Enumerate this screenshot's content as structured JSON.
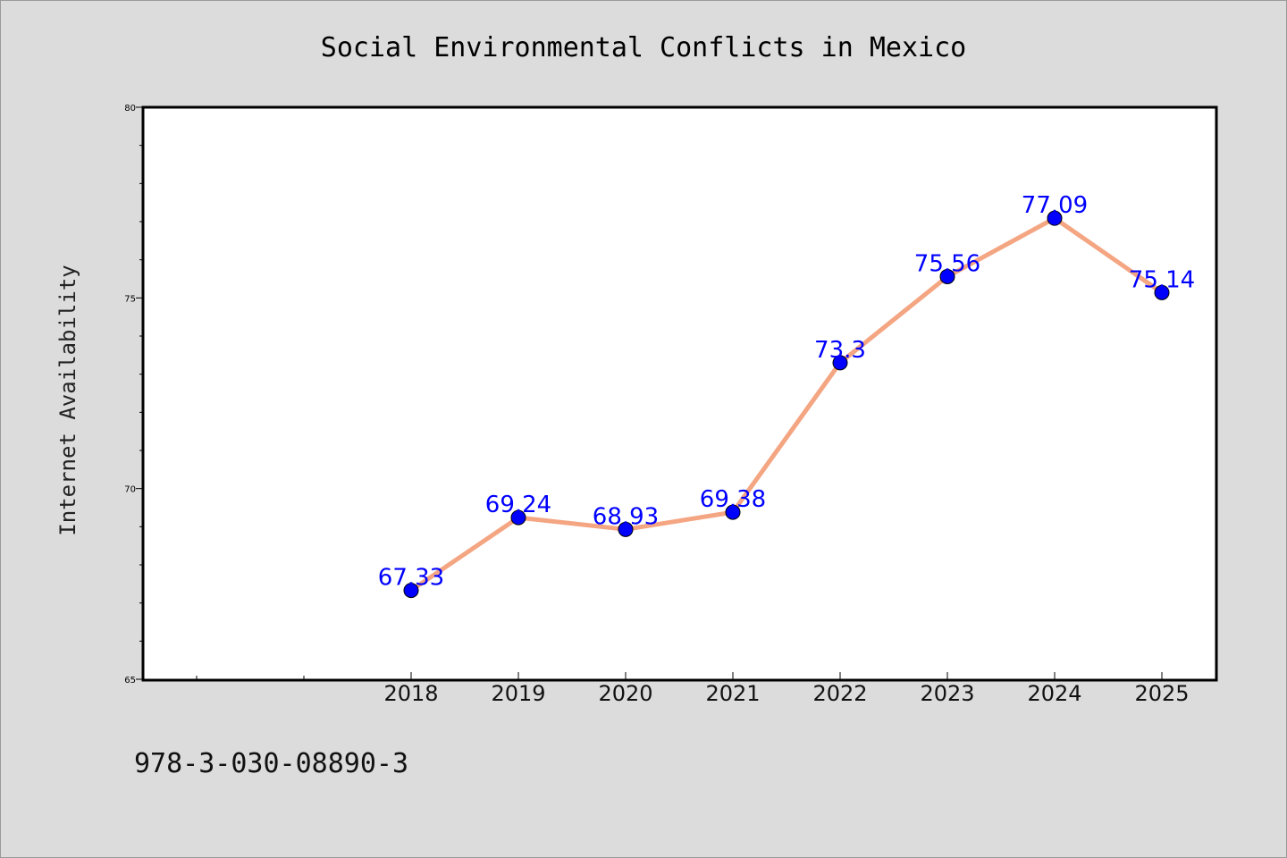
{
  "chart_data": {
    "type": "line",
    "title": "Social Environmental Conflicts in Mexico",
    "xlabel": "",
    "ylabel": "Internet Availability",
    "categories": [
      "2018",
      "2019",
      "2020",
      "2021",
      "2022",
      "2023",
      "2024",
      "2025"
    ],
    "series": [
      {
        "values": [
          67.33,
          69.24,
          68.93,
          69.38,
          73.3,
          75.56,
          77.09,
          75.14
        ],
        "data_labels": [
          "67.33",
          "69.24",
          "68.93",
          "69.38",
          "73.3",
          "75.56",
          "77.09",
          "75.14"
        ],
        "line_color": "#f4a582",
        "marker_color": "#0000ff",
        "label_color": "#0000ff"
      }
    ],
    "ylim": [
      65,
      80
    ],
    "yticks": [
      "65",
      "70",
      "75",
      "80"
    ],
    "grid": false,
    "legend": "none"
  },
  "footer_text": "978-3-030-08890-3"
}
